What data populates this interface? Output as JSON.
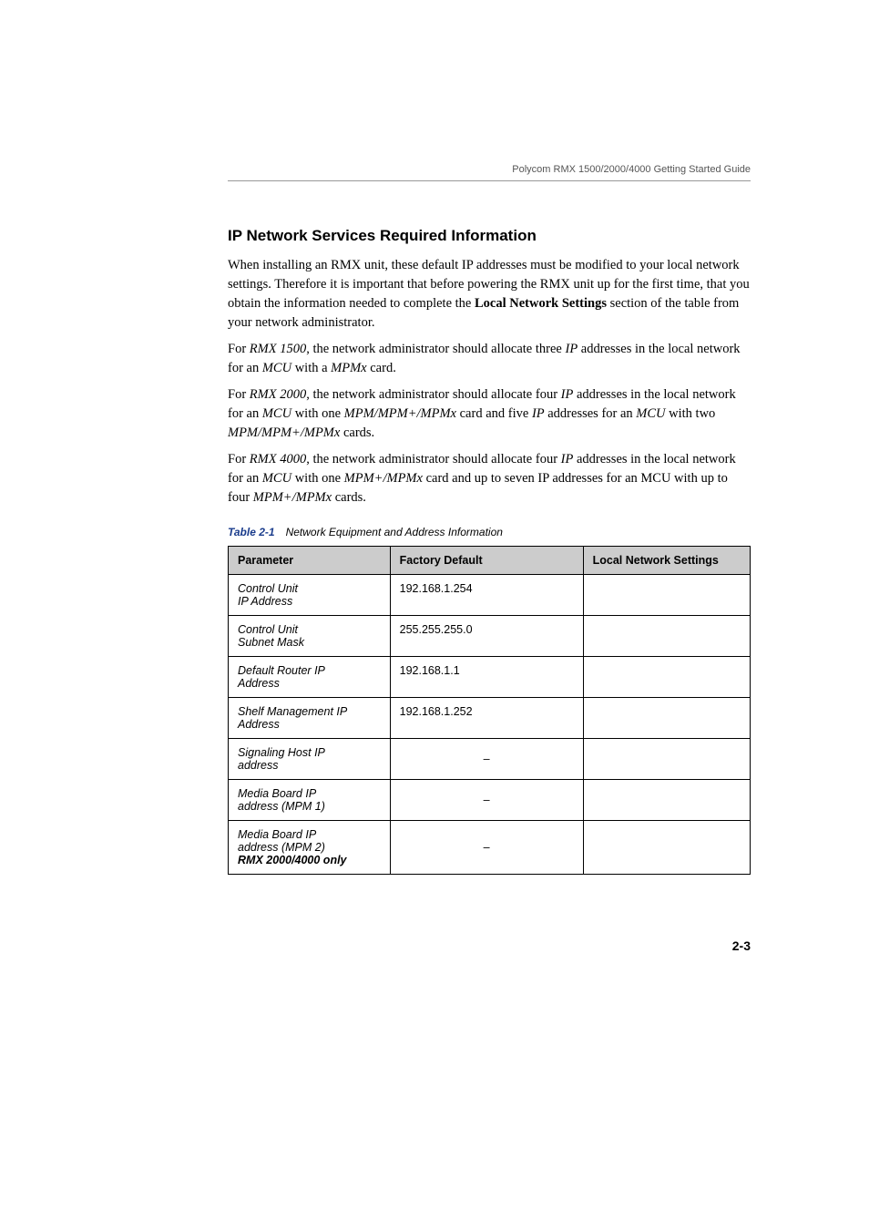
{
  "header": {
    "doc_title": "Polycom RMX 1500/2000/4000 Getting Started Guide"
  },
  "section": {
    "heading": "IP Network Services Required Information",
    "para1_a": "When installing an RMX unit, these default IP addresses must be modified to your local network settings. Therefore it is important that before powering the RMX unit up for the first time, that you obtain the information needed to complete the ",
    "para1_bold": "Local Network Settings",
    "para1_b": " section of the table from your network administrator.",
    "para2_a": "For ",
    "para2_i1": "RMX 1500",
    "para2_b": ", the network administrator should allocate three ",
    "para2_i2": "IP",
    "para2_c": " addresses in the local network for an ",
    "para2_i3": "MCU",
    "para2_d": " with a ",
    "para2_i4": "MPMx",
    "para2_e": " card.",
    "para3_a": "For ",
    "para3_i1": "RMX 2000",
    "para3_b": ", the network administrator should allocate four ",
    "para3_i2": "IP",
    "para3_c": " addresses in the local network for an ",
    "para3_i3": "MCU",
    "para3_d": " with one ",
    "para3_i4": "MPM/MPM+/MPMx",
    "para3_e": " card and five ",
    "para3_i5": "IP",
    "para3_f": " addresses for an ",
    "para3_i6": "MCU",
    "para3_g": " with two ",
    "para3_i7": "MPM/MPM+/MPMx",
    "para3_h": " cards.",
    "para4_a": "For ",
    "para4_i1": "RMX 4000",
    "para4_b": ", the network administrator should allocate four ",
    "para4_i2": "IP",
    "para4_c": " addresses in the local network for an ",
    "para4_i3": "MCU",
    "para4_d": " with one ",
    "para4_i4": "MPM+/MPMx",
    "para4_e": " card and up to seven IP addresses for an MCU with up to four ",
    "para4_i5": "MPM+/MPMx",
    "para4_f": " cards."
  },
  "table": {
    "caption_num": "Table 2-1",
    "caption_title": "Network Equipment and Address Information",
    "columns": [
      "Parameter",
      "Factory Default",
      "Local Network Settings"
    ],
    "column_widths_pct": [
      31,
      37,
      32
    ],
    "header_bg": "#cccccc",
    "border_color": "#000000",
    "font_size_pt": 9.5,
    "rows": [
      {
        "param_a": "Control Unit",
        "param_b": "IP Address",
        "default": "192.168.1.254",
        "local": ""
      },
      {
        "param_a": "Control Unit",
        "param_b": "Subnet Mask",
        "default": "255.255.255.0",
        "local": ""
      },
      {
        "param_a": "Default Router IP",
        "param_b": "Address",
        "default": "192.168.1.1",
        "local": ""
      },
      {
        "param_a": "Shelf Management IP",
        "param_b": "Address",
        "default": "192.168.1.252",
        "local": ""
      },
      {
        "param_a": "Signaling Host IP",
        "param_b": "address",
        "default": "–",
        "local": "",
        "center": true
      },
      {
        "param_a": "Media Board IP",
        "param_b": "address (MPM 1)",
        "default": "–",
        "local": "",
        "center": true
      },
      {
        "param_a": "Media Board IP",
        "param_b": "address (MPM 2)",
        "param_c": "RMX 2000/4000 only",
        "default": "–",
        "local": "",
        "center": true
      }
    ]
  },
  "footer": {
    "page_num": "2-3"
  }
}
